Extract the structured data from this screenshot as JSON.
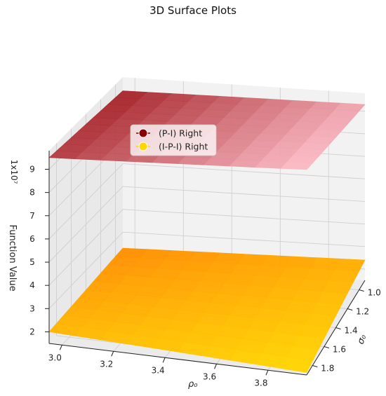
{
  "chart_data": {
    "type": "surface3d",
    "title": "3D Surface Plots",
    "xlabel": "ρ₀",
    "ylabel": "σ₀",
    "zlabel": "Function Value",
    "z_multiplier": "1x10⁷",
    "x_ticks": [
      "3.0",
      "3.2",
      "3.4",
      "3.6",
      "3.8"
    ],
    "y_ticks": [
      "1.0",
      "1.2",
      "1.4",
      "1.6",
      "1.8"
    ],
    "z_ticks": [
      "2",
      "3",
      "4",
      "5",
      "6",
      "7",
      "8",
      "9"
    ],
    "xlim": [
      2.95,
      3.95
    ],
    "ylim": [
      0.9,
      1.9
    ],
    "grid": true,
    "legend_position": "upper-left",
    "series": [
      {
        "name": "(P-I) Right",
        "color": "#8b0000",
        "colormap": [
          "#a31e24",
          "#ffc0cb"
        ],
        "z_corners": {
          "x_min_y_max": 9.5,
          "x_min_y_min": 9.2,
          "x_max_y_max": 9.8,
          "x_max_y_min": 9.3
        }
      },
      {
        "name": "(I-P-I) Right",
        "color": "#ffd700",
        "colormap": [
          "#ff8c00",
          "#ffd700"
        ],
        "z_corners": {
          "x_min_y_max": 2.0,
          "x_min_y_min": 2.3,
          "x_max_y_max": 1.6,
          "x_max_y_min": 2.4
        }
      }
    ]
  }
}
